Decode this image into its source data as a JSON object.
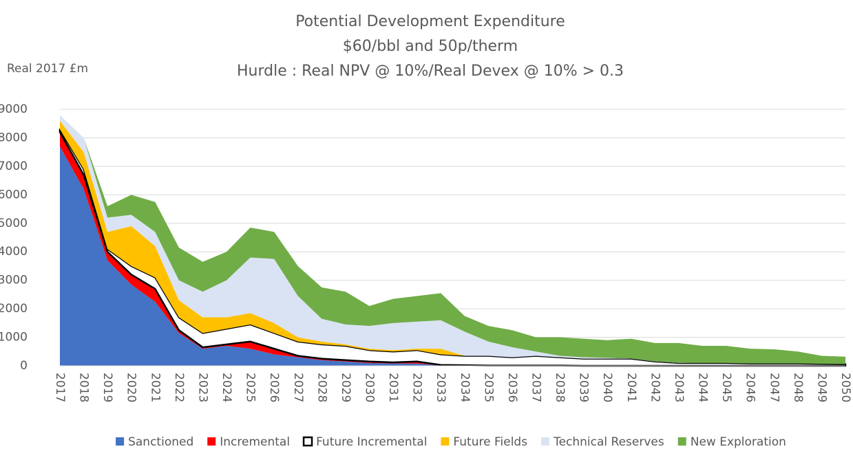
{
  "chart_data": {
    "type": "stacked_area",
    "title": "Potential Development Expenditure",
    "subtitle": [
      "$60/bbl and 50p/therm",
      "Hurdle : Real NPV @ 10%/Real Devex @ 10% > 0.3"
    ],
    "y_label": "Real 2017 £m",
    "categories": [
      "2017",
      "2018",
      "2019",
      "2020",
      "2021",
      "2022",
      "2023",
      "2024",
      "2025",
      "2026",
      "2027",
      "2028",
      "2029",
      "2030",
      "2031",
      "2032",
      "2033",
      "2034",
      "2035",
      "2036",
      "2037",
      "2038",
      "2039",
      "2040",
      "2041",
      "2042",
      "2043",
      "2044",
      "2045",
      "2046",
      "2047",
      "2048",
      "2049",
      "2050"
    ],
    "series": [
      {
        "name": "Sanctioned",
        "color": "#4472c4",
        "values": [
          7700,
          6200,
          3700,
          2850,
          2250,
          1150,
          600,
          700,
          600,
          400,
          300,
          200,
          150,
          100,
          80,
          80,
          20,
          10,
          10,
          10,
          10,
          10,
          0,
          0,
          0,
          0,
          0,
          0,
          0,
          0,
          0,
          0,
          0,
          0
        ]
      },
      {
        "name": "Incremental",
        "color": "#ff0000",
        "values": [
          500,
          500,
          300,
          350,
          450,
          100,
          50,
          50,
          250,
          200,
          50,
          50,
          50,
          50,
          40,
          70,
          10,
          10,
          0,
          0,
          0,
          0,
          0,
          0,
          0,
          0,
          0,
          0,
          0,
          0,
          0,
          0,
          0,
          0
        ]
      },
      {
        "name": "Future Incremental",
        "color": "#ffffff",
        "stroke": "#000000",
        "values": [
          100,
          200,
          100,
          300,
          400,
          450,
          500,
          550,
          600,
          550,
          500,
          500,
          500,
          400,
          380,
          400,
          370,
          330,
          340,
          290,
          340,
          290,
          250,
          250,
          250,
          150,
          100,
          100,
          100,
          80,
          80,
          80,
          70,
          60
        ]
      },
      {
        "name": "Future Fields",
        "color": "#ffc000",
        "values": [
          300,
          600,
          600,
          1400,
          1100,
          600,
          550,
          400,
          400,
          350,
          150,
          100,
          50,
          50,
          50,
          50,
          200,
          0,
          0,
          0,
          0,
          0,
          0,
          0,
          0,
          0,
          0,
          0,
          0,
          0,
          0,
          0,
          0,
          0
        ]
      },
      {
        "name": "Technical Reserves",
        "color": "#dae3f3",
        "values": [
          200,
          500,
          500,
          400,
          500,
          700,
          900,
          1300,
          1950,
          2250,
          1450,
          800,
          700,
          800,
          950,
          950,
          1000,
          850,
          500,
          350,
          150,
          50,
          50,
          30,
          10,
          10,
          10,
          0,
          0,
          0,
          0,
          0,
          0,
          0
        ]
      },
      {
        "name": "New Exploration",
        "color": "#70ad47",
        "values": [
          0,
          0,
          400,
          700,
          1050,
          1150,
          1050,
          1000,
          1050,
          950,
          1050,
          1100,
          1150,
          700,
          850,
          900,
          950,
          550,
          550,
          600,
          500,
          650,
          650,
          620,
          690,
          640,
          690,
          600,
          600,
          520,
          500,
          420,
          280,
          260
        ]
      }
    ],
    "ylim": [
      0,
      9000
    ],
    "yticks": [
      0,
      1000,
      2000,
      3000,
      4000,
      5000,
      6000,
      7000,
      8000,
      9000
    ],
    "grid": true,
    "legend": "bottom"
  }
}
